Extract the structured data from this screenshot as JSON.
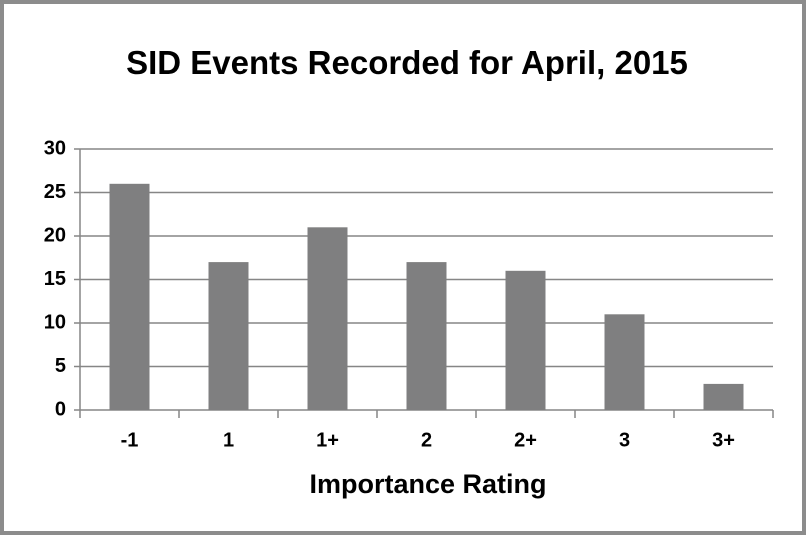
{
  "chart_data": {
    "type": "bar",
    "title": "SID Events Recorded for April, 2015",
    "x_label": "Importance Rating",
    "categories": [
      "-1",
      "1",
      "1+",
      "2",
      "2+",
      "3",
      "3+"
    ],
    "values": [
      26,
      17,
      21,
      17,
      16,
      11,
      3
    ],
    "color": "#7f7f80",
    "ylim": [
      0,
      30
    ],
    "yticks": [
      0,
      5,
      10,
      15,
      20,
      25,
      30
    ],
    "grid": true
  }
}
